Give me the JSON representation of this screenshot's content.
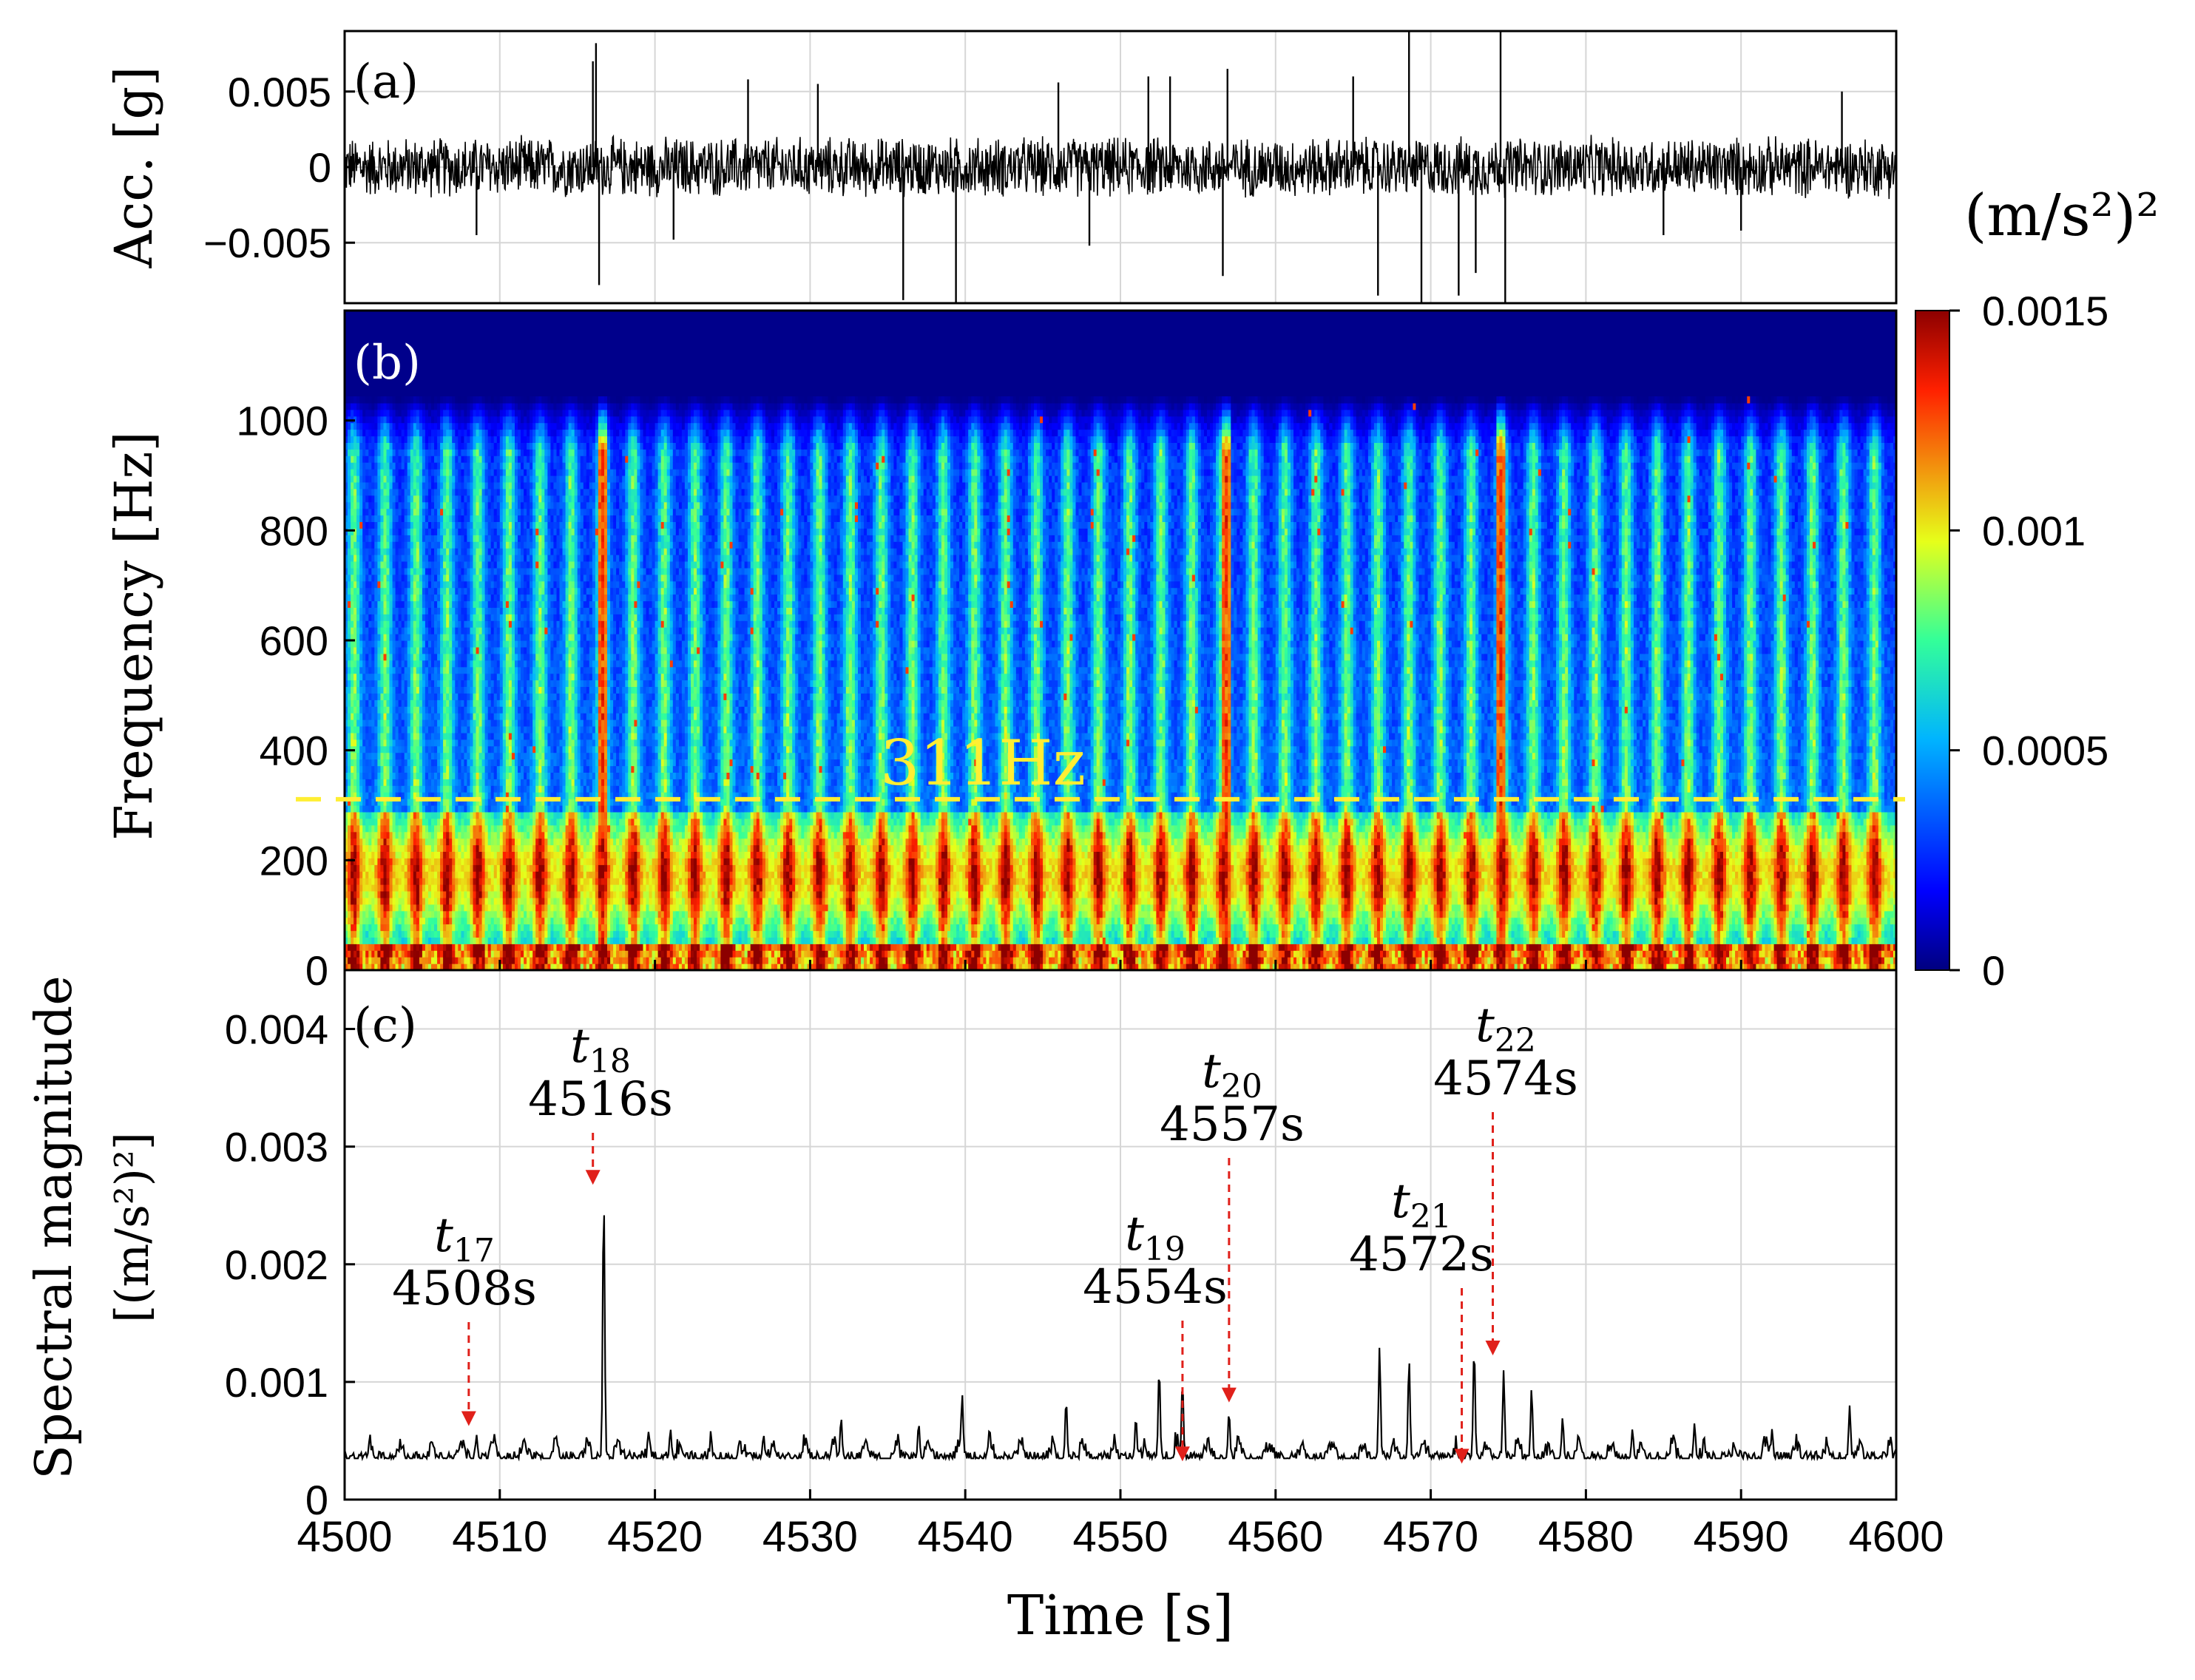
{
  "chart_data": [
    {
      "panel": "(a)",
      "type": "line",
      "ylabel": "Acc. [g]",
      "yticks": [
        {
          "v": 0.005,
          "label": "0.005"
        },
        {
          "v": 0,
          "label": "0"
        },
        {
          "v": -0.005,
          "label": "−0.005"
        }
      ],
      "ylim": [
        -0.009,
        0.009
      ],
      "xlim": [
        4500,
        4600
      ],
      "grid": true,
      "noise_amplitude": 0.0022,
      "spikes": [
        {
          "t": 4516.2,
          "v": 0.0082
        },
        {
          "t": 4516.4,
          "v": -0.0078
        },
        {
          "t": 4516.0,
          "v": 0.007
        },
        {
          "t": 4508.5,
          "v": -0.0045
        },
        {
          "t": 4521.2,
          "v": -0.0048
        },
        {
          "t": 4526.0,
          "v": 0.0058
        },
        {
          "t": 4530.5,
          "v": 0.0055
        },
        {
          "t": 4536.0,
          "v": -0.0088
        },
        {
          "t": 4539.4,
          "v": -0.009
        },
        {
          "t": 4546.0,
          "v": 0.0056
        },
        {
          "t": 4548.0,
          "v": -0.0052
        },
        {
          "t": 4551.8,
          "v": 0.006
        },
        {
          "t": 4553.2,
          "v": 0.006
        },
        {
          "t": 4556.6,
          "v": -0.0072
        },
        {
          "t": 4556.9,
          "v": 0.0065
        },
        {
          "t": 4565.0,
          "v": 0.006
        },
        {
          "t": 4566.6,
          "v": -0.0085
        },
        {
          "t": 4568.6,
          "v": 0.009
        },
        {
          "t": 4569.4,
          "v": -0.009
        },
        {
          "t": 4571.8,
          "v": -0.0085
        },
        {
          "t": 4572.9,
          "v": -0.007
        },
        {
          "t": 4574.5,
          "v": 0.009
        },
        {
          "t": 4574.8,
          "v": -0.009
        },
        {
          "t": 4585.0,
          "v": -0.0045
        },
        {
          "t": 4590.0,
          "v": -0.0042
        },
        {
          "t": 4596.5,
          "v": 0.005
        }
      ]
    },
    {
      "panel": "(b)",
      "type": "heatmap",
      "ylabel": "Frequency [Hz]",
      "yticks": [
        0,
        200,
        400,
        600,
        800,
        1000
      ],
      "ylim": [
        0,
        1200
      ],
      "xlim": [
        4500,
        4600
      ],
      "colorbar": {
        "unit": "(m/s²)²",
        "ticks": [
          "0",
          "0.0005",
          "0.001",
          "0.0015"
        ],
        "tick_values": [
          0,
          0.0005,
          0.001,
          0.0015
        ],
        "range": [
          0,
          0.0015
        ]
      },
      "reference_line": {
        "freq": 311,
        "label": "311Hz",
        "color": "#ffee33"
      },
      "band_upper_limit_hz": 1000,
      "strong_bursts": [
        4516.6,
        4556.8,
        4574.5
      ]
    },
    {
      "panel": "(c)",
      "type": "line",
      "ylabel": "Spectral magnitude",
      "ylabel_unit": "[(m/s²)²]",
      "xlabel": "Time [s]",
      "xlim": [
        4500,
        4600
      ],
      "ylim": [
        0,
        0.0045
      ],
      "xticks": [
        4500,
        4510,
        4520,
        4530,
        4540,
        4550,
        4560,
        4570,
        4580,
        4590,
        4600
      ],
      "yticks": [
        {
          "v": 0,
          "label": "0"
        },
        {
          "v": 0.001,
          "label": "0.001"
        },
        {
          "v": 0.002,
          "label": "0.002"
        },
        {
          "v": 0.003,
          "label": "0.003"
        },
        {
          "v": 0.004,
          "label": "0.004"
        }
      ],
      "grid": true,
      "baseline": 0.00035,
      "peaks": [
        {
          "t": 4508.5,
          "v": 0.00055
        },
        {
          "t": 4516.7,
          "v": 0.0026
        },
        {
          "t": 4521.0,
          "v": 0.0006
        },
        {
          "t": 4527.0,
          "v": 0.00055
        },
        {
          "t": 4532.0,
          "v": 0.0007
        },
        {
          "t": 4537.0,
          "v": 0.00065
        },
        {
          "t": 4539.8,
          "v": 0.0009
        },
        {
          "t": 4546.5,
          "v": 0.00085
        },
        {
          "t": 4551.0,
          "v": 0.0007
        },
        {
          "t": 4552.5,
          "v": 0.00112
        },
        {
          "t": 4554.0,
          "v": 0.001
        },
        {
          "t": 4557.0,
          "v": 0.00075
        },
        {
          "t": 4566.7,
          "v": 0.0013
        },
        {
          "t": 4568.6,
          "v": 0.0012
        },
        {
          "t": 4572.8,
          "v": 0.0013
        },
        {
          "t": 4574.7,
          "v": 0.0011
        },
        {
          "t": 4576.5,
          "v": 0.00095
        },
        {
          "t": 4578.5,
          "v": 0.0007
        },
        {
          "t": 4583.0,
          "v": 0.0006
        },
        {
          "t": 4587.0,
          "v": 0.00065
        },
        {
          "t": 4592.0,
          "v": 0.0006
        },
        {
          "t": 4597.0,
          "v": 0.0008
        }
      ],
      "annotations": [
        {
          "sym": "t",
          "sub": "17",
          "time_label": "4508s",
          "t": 4508.0,
          "v": 0.00055
        },
        {
          "sym": "t",
          "sub": "18",
          "time_label": "4516s",
          "t": 4516.0,
          "v": 0.0026
        },
        {
          "sym": "t",
          "sub": "19",
          "time_label": "4554s",
          "t": 4554.0,
          "v": 0.00025
        },
        {
          "sym": "t",
          "sub": "20",
          "time_label": "4557s",
          "t": 4557.0,
          "v": 0.00075
        },
        {
          "sym": "t",
          "sub": "21",
          "time_label": "4572s",
          "t": 4572.0,
          "v": 0.00023
        },
        {
          "sym": "t",
          "sub": "22",
          "time_label": "4574s",
          "t": 4574.0,
          "v": 0.00115
        }
      ]
    }
  ]
}
